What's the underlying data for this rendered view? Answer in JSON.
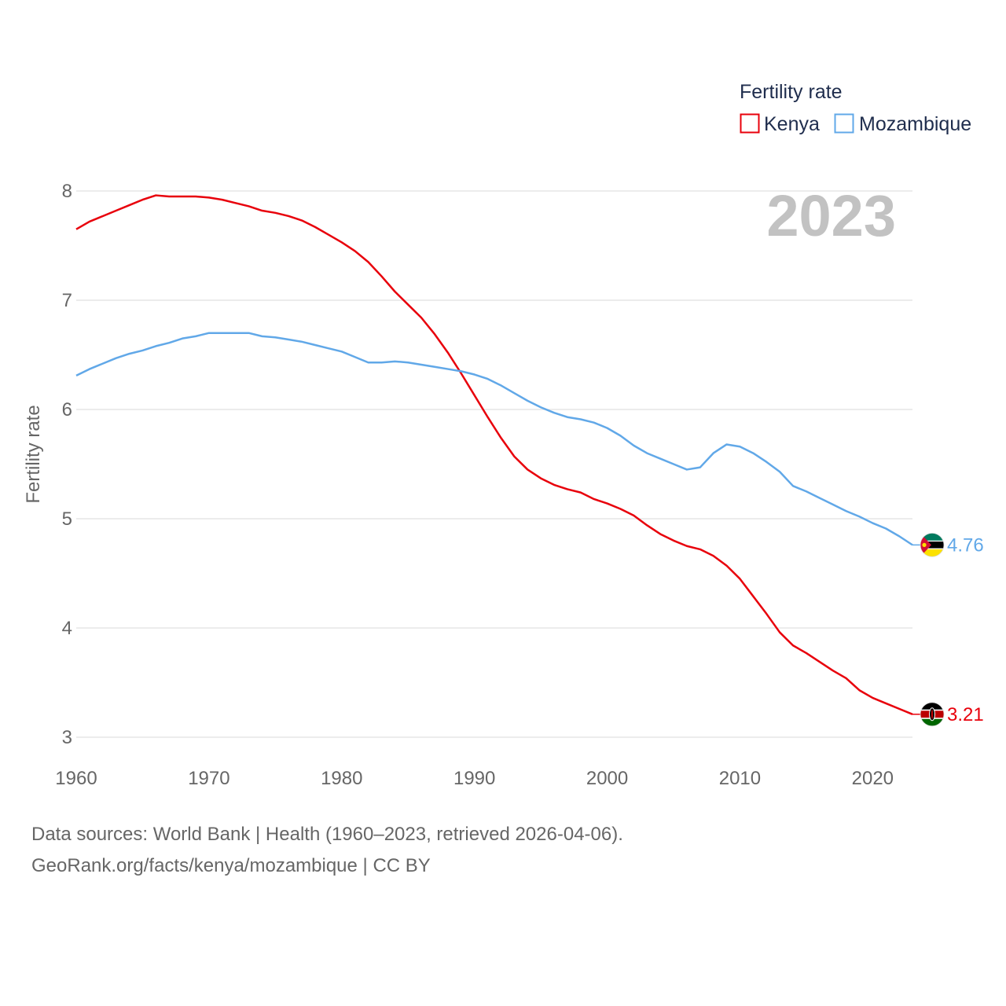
{
  "chart_data": {
    "type": "line",
    "title": "Fertility rate",
    "ylabel": "Fertility rate",
    "xlabel": "",
    "current_year": "2023",
    "xlim": [
      1960,
      2023
    ],
    "ylim": [
      3,
      8
    ],
    "x_ticks": [
      1960,
      1970,
      1980,
      1990,
      2000,
      2010,
      2020
    ],
    "y_ticks": [
      3,
      4,
      5,
      6,
      7,
      8
    ],
    "grid": true,
    "legend_position": "top-right",
    "x": [
      1960,
      1961,
      1962,
      1963,
      1964,
      1965,
      1966,
      1967,
      1968,
      1969,
      1970,
      1971,
      1972,
      1973,
      1974,
      1975,
      1976,
      1977,
      1978,
      1979,
      1980,
      1981,
      1982,
      1983,
      1984,
      1985,
      1986,
      1987,
      1988,
      1989,
      1990,
      1991,
      1992,
      1993,
      1994,
      1995,
      1996,
      1997,
      1998,
      1999,
      2000,
      2001,
      2002,
      2003,
      2004,
      2005,
      2006,
      2007,
      2008,
      2009,
      2010,
      2011,
      2012,
      2013,
      2014,
      2015,
      2016,
      2017,
      2018,
      2019,
      2020,
      2021,
      2022,
      2023
    ],
    "series": [
      {
        "name": "Kenya",
        "color": "#e8000b",
        "end_label": "3.21",
        "flag_icon": "kenya-flag-icon",
        "values": [
          7.65,
          7.72,
          7.77,
          7.82,
          7.87,
          7.92,
          7.96,
          7.95,
          7.95,
          7.95,
          7.94,
          7.92,
          7.89,
          7.86,
          7.82,
          7.8,
          7.77,
          7.73,
          7.67,
          7.6,
          7.53,
          7.45,
          7.35,
          7.22,
          7.08,
          6.96,
          6.84,
          6.69,
          6.52,
          6.33,
          6.13,
          5.93,
          5.74,
          5.57,
          5.45,
          5.37,
          5.31,
          5.27,
          5.24,
          5.18,
          5.14,
          5.09,
          5.03,
          4.94,
          4.86,
          4.8,
          4.75,
          4.72,
          4.66,
          4.57,
          4.45,
          4.29,
          4.13,
          3.96,
          3.84,
          3.77,
          3.69,
          3.61,
          3.54,
          3.43,
          3.36,
          3.31,
          3.26,
          3.21
        ]
      },
      {
        "name": "Mozambique",
        "color": "#61a8e8",
        "end_label": "4.76",
        "flag_icon": "mozambique-flag-icon",
        "values": [
          6.31,
          6.37,
          6.42,
          6.47,
          6.51,
          6.54,
          6.58,
          6.61,
          6.65,
          6.67,
          6.7,
          6.7,
          6.7,
          6.7,
          6.67,
          6.66,
          6.64,
          6.62,
          6.59,
          6.56,
          6.53,
          6.48,
          6.43,
          6.43,
          6.44,
          6.43,
          6.41,
          6.39,
          6.37,
          6.35,
          6.32,
          6.28,
          6.22,
          6.15,
          6.08,
          6.02,
          5.97,
          5.93,
          5.91,
          5.88,
          5.83,
          5.76,
          5.67,
          5.6,
          5.55,
          5.5,
          5.45,
          5.47,
          5.6,
          5.68,
          5.66,
          5.6,
          5.52,
          5.43,
          5.3,
          5.25,
          5.19,
          5.13,
          5.07,
          5.02,
          4.96,
          4.91,
          4.84,
          4.76
        ]
      }
    ]
  },
  "footer": {
    "line1": "Data sources: World Bank | Health (1960–2023, retrieved 2026-04-06).",
    "line2": "GeoRank.org/facts/kenya/mozambique | CC BY"
  }
}
